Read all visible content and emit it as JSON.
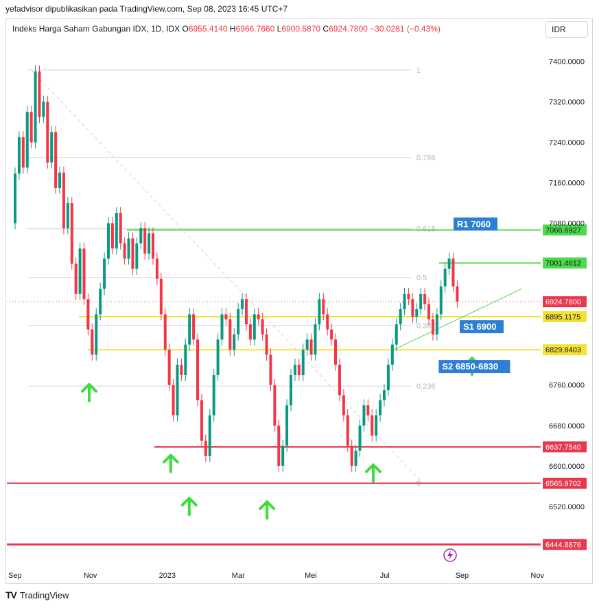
{
  "header": {
    "attribution": "yefadvisor dipublikasikan pada TradingView.com, Sep 08, 2023 16:45 UTC+7"
  },
  "legend": {
    "symbol": "Indeks Harga Saham Gabungan IDX, 1D, IDX",
    "open_label": "O",
    "open": "6955.4140",
    "high_label": "H",
    "high": "6966.7660",
    "low_label": "L",
    "low": "6900.5870",
    "close_label": "C",
    "close": "6924.7800",
    "change": "−30.0281 (−0.43%)"
  },
  "currency_button": "IDR",
  "footer": {
    "brand": "TradingView",
    "logo": "TV"
  },
  "colors": {
    "up": "#089981",
    "down": "#f23645",
    "support": "#f5e133",
    "resistance": "#4cd94c",
    "red_line": "#e8384f",
    "fib": "#d1d4dc",
    "label_blue": "#2d7fd5"
  },
  "chart_data": {
    "type": "candlestick",
    "y_axis_ticks": [
      "7400.0000",
      "7320.0000",
      "7240.0000",
      "7160.0000",
      "7080.0000",
      "6760.0000",
      "6680.0000",
      "6600.0000",
      "6520.0000"
    ],
    "ylim": [
      6410,
      7440
    ],
    "x_axis_ticks": [
      "Sep",
      "Nov",
      "2023",
      "Mar",
      "Mei",
      "Jul",
      "Sep",
      "Nov"
    ],
    "x_tick_days": [
      0,
      61,
      122,
      181,
      240,
      301,
      362,
      423
    ],
    "x_start": "2022-09-01",
    "candles": [
      [
        7080,
        7178
      ],
      [
        7178,
        7250
      ],
      [
        7250,
        7190
      ],
      [
        7190,
        7300
      ],
      [
        7300,
        7240
      ],
      [
        7240,
        7380
      ],
      [
        7380,
        7290
      ],
      [
        7290,
        7320
      ],
      [
        7320,
        7200
      ],
      [
        7200,
        7260
      ],
      [
        7260,
        7150
      ],
      [
        7150,
        7180
      ],
      [
        7180,
        7070
      ],
      [
        7070,
        7120
      ],
      [
        7120,
        7000
      ],
      [
        7000,
        6940
      ],
      [
        6940,
        7030
      ],
      [
        7030,
        6930
      ],
      [
        6930,
        6870
      ],
      [
        6870,
        6820
      ],
      [
        6820,
        6900
      ],
      [
        6900,
        6950
      ],
      [
        6950,
        7010
      ],
      [
        7010,
        7080
      ],
      [
        7080,
        7030
      ],
      [
        7030,
        7100
      ],
      [
        7100,
        7040
      ],
      [
        7040,
        7010
      ],
      [
        7010,
        7050
      ],
      [
        7050,
        6990
      ],
      [
        6990,
        7040
      ],
      [
        7040,
        7070
      ],
      [
        7070,
        7020
      ],
      [
        7020,
        7060
      ],
      [
        7060,
        7010
      ],
      [
        7010,
        6970
      ],
      [
        6970,
        6900
      ],
      [
        6900,
        6830
      ],
      [
        6830,
        6760
      ],
      [
        6760,
        6700
      ],
      [
        6700,
        6800
      ],
      [
        6800,
        6780
      ],
      [
        6780,
        6840
      ],
      [
        6840,
        6900
      ],
      [
        6900,
        6850
      ],
      [
        6850,
        6730
      ],
      [
        6730,
        6650
      ],
      [
        6650,
        6620
      ],
      [
        6620,
        6700
      ],
      [
        6700,
        6780
      ],
      [
        6780,
        6850
      ],
      [
        6850,
        6900
      ],
      [
        6900,
        6890
      ],
      [
        6890,
        6830
      ],
      [
        6830,
        6860
      ],
      [
        6860,
        6910
      ],
      [
        6910,
        6930
      ],
      [
        6930,
        6880
      ],
      [
        6880,
        6850
      ],
      [
        6850,
        6900
      ],
      [
        6900,
        6890
      ],
      [
        6890,
        6860
      ],
      [
        6860,
        6820
      ],
      [
        6820,
        6760
      ],
      [
        6760,
        6680
      ],
      [
        6680,
        6600
      ],
      [
        6600,
        6640
      ],
      [
        6640,
        6720
      ],
      [
        6720,
        6780
      ],
      [
        6780,
        6800
      ],
      [
        6800,
        6780
      ],
      [
        6780,
        6830
      ],
      [
        6830,
        6850
      ],
      [
        6850,
        6820
      ],
      [
        6820,
        6880
      ],
      [
        6880,
        6930
      ],
      [
        6930,
        6900
      ],
      [
        6900,
        6870
      ],
      [
        6870,
        6850
      ],
      [
        6850,
        6800
      ],
      [
        6800,
        6740
      ],
      [
        6740,
        6700
      ],
      [
        6700,
        6640
      ],
      [
        6640,
        6600
      ],
      [
        6600,
        6630
      ],
      [
        6630,
        6680
      ],
      [
        6680,
        6720
      ],
      [
        6720,
        6700
      ],
      [
        6700,
        6660
      ],
      [
        6660,
        6700
      ],
      [
        6700,
        6730
      ],
      [
        6730,
        6750
      ],
      [
        6750,
        6800
      ],
      [
        6800,
        6840
      ],
      [
        6840,
        6880
      ],
      [
        6880,
        6910
      ],
      [
        6910,
        6940
      ],
      [
        6940,
        6930
      ],
      [
        6930,
        6895
      ],
      [
        6895,
        6910
      ],
      [
        6910,
        6940
      ],
      [
        6940,
        6920
      ],
      [
        6920,
        6890
      ],
      [
        6890,
        6860
      ],
      [
        6860,
        6900
      ],
      [
        6900,
        6955
      ],
      [
        6955,
        6990
      ],
      [
        6990,
        7010
      ],
      [
        7010,
        6955
      ],
      [
        6955,
        6925
      ]
    ],
    "fib_levels": [
      {
        "label": "1",
        "value": 7383
      },
      {
        "label": "0.786",
        "value": 7210
      },
      {
        "label": "0.618",
        "value": 7069
      },
      {
        "label": "0.5",
        "value": 6973
      },
      {
        "label": "0.382",
        "value": 6878
      },
      {
        "label": "0.236",
        "value": 6758
      },
      {
        "label": "0",
        "value": 6566
      }
    ],
    "horizontal_levels": [
      {
        "name": "r1",
        "value": 7066.6927,
        "label": "7066.6927",
        "kind": "resistance"
      },
      {
        "name": "r0",
        "value": 7001.4612,
        "label": "7001.4612",
        "kind": "resistance"
      },
      {
        "name": "last-price",
        "value": 6924.78,
        "label": "6924.7800",
        "kind": "price"
      },
      {
        "name": "s1",
        "value": 6895.1175,
        "label": "6895.1175",
        "kind": "support"
      },
      {
        "name": "s2",
        "value": 6829.8403,
        "label": "6829.8403",
        "kind": "support"
      },
      {
        "name": "red1",
        "value": 6637.754,
        "label": "6637.7540",
        "kind": "red"
      },
      {
        "name": "red2",
        "value": 6565.9702,
        "label": "6565.9702",
        "kind": "red"
      },
      {
        "name": "red3",
        "value": 6444.8876,
        "label": "6444.8876",
        "kind": "red"
      }
    ],
    "text_annotations": [
      {
        "name": "r1-label",
        "text": "R1 7060"
      },
      {
        "name": "s1-label",
        "text": "S1 6900"
      },
      {
        "name": "s2-label",
        "text": "S2 6850-6830"
      }
    ],
    "up_arrows": [
      {
        "day": 60,
        "value": 6745
      },
      {
        "day": 126,
        "value": 6605
      },
      {
        "day": 141,
        "value": 6520
      },
      {
        "day": 204,
        "value": 6513
      },
      {
        "day": 290,
        "value": 6586
      },
      {
        "day": 370,
        "value": 6797
      }
    ]
  }
}
